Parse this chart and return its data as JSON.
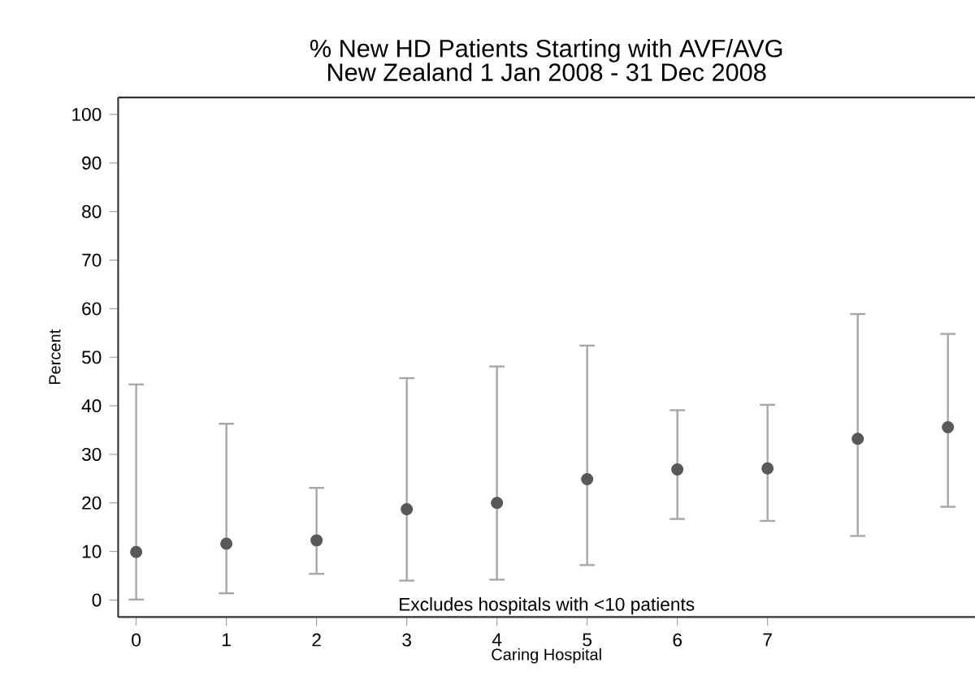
{
  "chart_data": {
    "type": "scatter",
    "title": "% New HD Patients Starting with AVF/AVG",
    "subtitle": "New Zealand 1 Jan 2008 - 31 Dec 2008",
    "xlabel": "Caring Hospital",
    "ylabel": "Percent",
    "x": [
      0,
      1,
      2,
      3,
      4,
      5,
      6,
      7,
      8,
      9
    ],
    "values": [
      9.9,
      11.6,
      12.3,
      18.7,
      20.0,
      24.9,
      26.9,
      27.1,
      33.2,
      35.6
    ],
    "errors": [
      [
        0.1,
        44.4
      ],
      [
        1.4,
        36.3
      ],
      [
        5.4,
        23.1
      ],
      [
        4.0,
        45.7
      ],
      [
        4.2,
        48.1
      ],
      [
        7.2,
        52.4
      ],
      [
        16.7,
        39.1
      ],
      [
        16.3,
        40.2
      ],
      [
        13.2,
        58.9
      ],
      [
        19.2,
        54.8
      ]
    ],
    "color": "#595959",
    "marker": "circle",
    "xlim": [
      -0.2,
      9.3
    ],
    "xticks": [
      0,
      1,
      2,
      3,
      4,
      5,
      6,
      7
    ],
    "ylim": [
      -3.5,
      103.5
    ],
    "yticks": [
      0,
      10,
      20,
      30,
      40,
      50,
      60,
      70,
      80,
      90,
      100
    ],
    "grid": false,
    "annotations": [
      "Excludes hospitals with <10 patients"
    ]
  }
}
